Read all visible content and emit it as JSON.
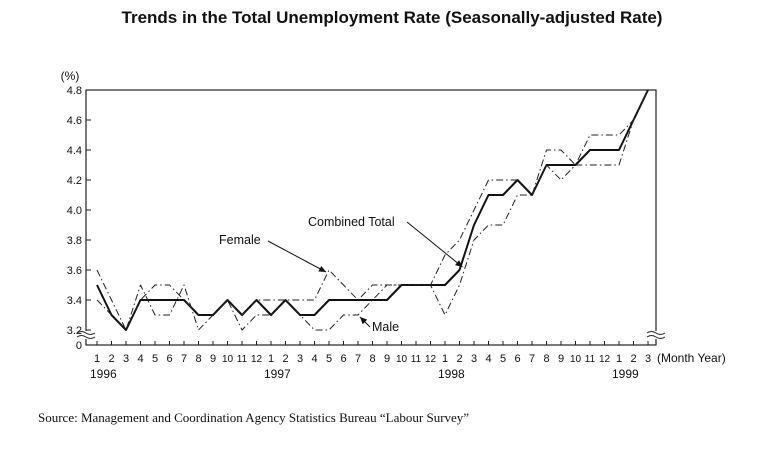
{
  "title": "Trends in the Total Unemployment Rate (Seasonally-adjusted Rate)",
  "source": "Source: Management and Coordination Agency Statistics Bureau “Labour Survey”",
  "chart_data": {
    "type": "line",
    "title": "Trends in the Total Unemployment Rate (Seasonally-adjusted Rate)",
    "y_unit_label": "(%)",
    "x_unit_label": "(Month Year)",
    "ylim": [
      3.2,
      4.8
    ],
    "y_ticks": [
      "0",
      "3.2",
      "3.4",
      "3.6",
      "3.8",
      "4.0",
      "4.2",
      "4.4",
      "4.6",
      "4.8"
    ],
    "y_axis_break": true,
    "x_month_labels": [
      "1",
      "2",
      "3",
      "4",
      "5",
      "6",
      "7",
      "8",
      "9",
      "10",
      "11",
      "12",
      "1",
      "2",
      "3",
      "4",
      "5",
      "6",
      "7",
      "8",
      "9",
      "10",
      "11",
      "12",
      "1",
      "2",
      "3",
      "4",
      "5",
      "6",
      "7",
      "8",
      "9",
      "10",
      "11",
      "12",
      "1",
      "2",
      "3"
    ],
    "x_year_labels": [
      {
        "label": "1996",
        "index": 0
      },
      {
        "label": "1997",
        "index": 12
      },
      {
        "label": "1998",
        "index": 24
      },
      {
        "label": "1999",
        "index": 36
      }
    ],
    "grid": false,
    "series": [
      {
        "name": "Combined Total",
        "style": "solid",
        "values": [
          3.5,
          3.3,
          3.2,
          3.4,
          3.4,
          3.4,
          3.4,
          3.3,
          3.3,
          3.4,
          3.3,
          3.4,
          3.3,
          3.4,
          3.3,
          3.3,
          3.4,
          3.4,
          3.4,
          3.4,
          3.4,
          3.5,
          3.5,
          3.5,
          3.5,
          3.6,
          3.9,
          4.1,
          4.1,
          4.2,
          4.1,
          4.3,
          4.3,
          4.3,
          4.4,
          4.4,
          4.4,
          4.6,
          4.8
        ]
      },
      {
        "name": "Female",
        "style": "dash-dot",
        "values": [
          3.6,
          3.4,
          3.2,
          3.4,
          3.5,
          3.5,
          3.4,
          3.3,
          3.3,
          3.4,
          3.3,
          3.4,
          3.4,
          3.4,
          3.4,
          3.4,
          3.6,
          3.5,
          3.4,
          3.5,
          3.5,
          3.5,
          3.5,
          3.5,
          3.7,
          3.8,
          4.0,
          4.2,
          4.2,
          4.2,
          4.1,
          4.4,
          4.4,
          4.3,
          4.5,
          4.5,
          4.5,
          4.6,
          4.8
        ]
      },
      {
        "name": "Male",
        "style": "dash-dot",
        "values": [
          3.4,
          3.3,
          3.2,
          3.5,
          3.3,
          3.3,
          3.5,
          3.2,
          3.3,
          3.4,
          3.2,
          3.3,
          3.3,
          3.4,
          3.3,
          3.2,
          3.2,
          3.3,
          3.3,
          3.4,
          3.5,
          3.5,
          3.5,
          3.5,
          3.3,
          3.5,
          3.8,
          3.9,
          3.9,
          4.1,
          4.1,
          4.3,
          4.2,
          4.3,
          4.3,
          4.3,
          4.3,
          4.6,
          4.8
        ]
      }
    ],
    "annotations": [
      "Combined Total",
      "Female",
      "Male"
    ]
  }
}
